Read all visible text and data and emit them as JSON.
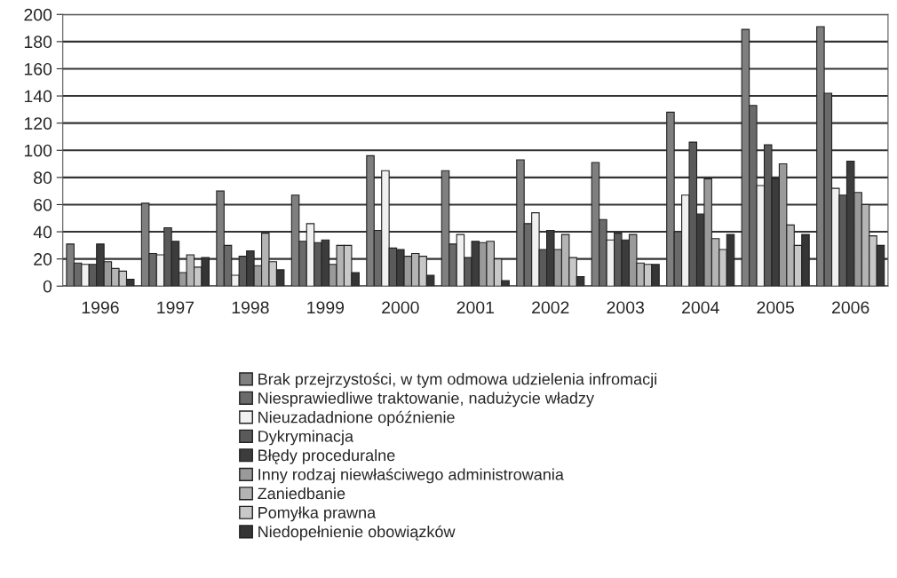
{
  "chart_data": {
    "type": "bar",
    "categories": [
      "1996",
      "1997",
      "1998",
      "1999",
      "2000",
      "2001",
      "2002",
      "2003",
      "2004",
      "2005",
      "2006"
    ],
    "series": [
      {
        "name": "Brak przejrzystości, w tym odmowa udzielenia infromacji",
        "color": "#7f7f7f",
        "values": [
          31,
          61,
          70,
          67,
          96,
          85,
          93,
          91,
          128,
          189,
          191
        ]
      },
      {
        "name": "Niesprawiedliwe traktowanie, nadużycie władzy",
        "color": "#6a6a6a",
        "values": [
          17,
          24,
          30,
          33,
          41,
          31,
          46,
          49,
          40,
          133,
          142
        ]
      },
      {
        "name": "Nieuzadadnione opóźnienie",
        "color": "#f0f0f0",
        "values": [
          16,
          23,
          8,
          46,
          85,
          38,
          54,
          34,
          67,
          74,
          72
        ]
      },
      {
        "name": "Dykryminacja",
        "color": "#5a5a5a",
        "values": [
          16,
          43,
          22,
          32,
          28,
          21,
          27,
          39,
          106,
          104,
          67
        ]
      },
      {
        "name": "Błędy proceduralne",
        "color": "#3c3c3c",
        "values": [
          31,
          33,
          26,
          34,
          27,
          33,
          41,
          34,
          53,
          79,
          92
        ]
      },
      {
        "name": "Inny rodzaj niewłaściwego administrowania",
        "color": "#9a9a9a",
        "values": [
          18,
          10,
          15,
          16,
          22,
          32,
          27,
          38,
          79,
          90,
          69
        ]
      },
      {
        "name": "Zaniedbanie",
        "color": "#b4b4b4",
        "values": [
          13,
          23,
          39,
          30,
          24,
          33,
          38,
          17,
          35,
          45,
          60
        ]
      },
      {
        "name": "Pomyłka prawna",
        "color": "#c8c8c8",
        "values": [
          11,
          14,
          18,
          30,
          22,
          20,
          21,
          16,
          27,
          30,
          37
        ]
      },
      {
        "name": "Niedopełnienie obowiązków",
        "color": "#353535",
        "values": [
          5,
          21,
          12,
          10,
          8,
          4,
          7,
          16,
          38,
          38,
          30
        ]
      }
    ],
    "ylim": [
      0,
      200
    ],
    "yticks": [
      0,
      20,
      40,
      60,
      80,
      100,
      120,
      140,
      160,
      180,
      200
    ],
    "grid": "y",
    "legend": "bottom"
  }
}
